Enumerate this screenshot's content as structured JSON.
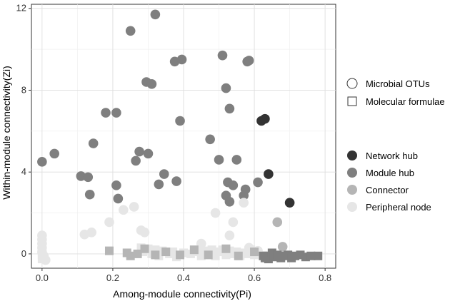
{
  "chart_data": {
    "type": "scatter",
    "title": "",
    "xlabel": "Among-module connectivity(Pi)",
    "ylabel": "Within-module connectivity(Zi)",
    "xlim": [
      -0.03,
      0.83
    ],
    "ylim": [
      -0.7,
      12.2
    ],
    "x_ticks": [
      0.0,
      0.2,
      0.4,
      0.6,
      0.8
    ],
    "x_tick_labels": [
      "0.0",
      "0.2",
      "0.4",
      "0.6",
      "0.8"
    ],
    "y_ticks": [
      0,
      4,
      8,
      12
    ],
    "y_tick_labels": [
      "0",
      "4",
      "8",
      "12"
    ],
    "grid": true,
    "legend_shape": {
      "items": [
        {
          "label": "Microbial OTUs",
          "shape": "circle"
        },
        {
          "label": "Molecular formulae",
          "shape": "square"
        }
      ]
    },
    "legend_role": {
      "items": [
        {
          "label": "Network hub",
          "color": "#333333"
        },
        {
          "label": "Module hub",
          "color": "#7f7f7f"
        },
        {
          "label": "Connector",
          "color": "#b5b5b5"
        },
        {
          "label": "Peripheral node",
          "color": "#e6e6e6"
        }
      ]
    },
    "series": [
      {
        "name": "Network hub",
        "shape": "circle",
        "color": "#333333",
        "points": [
          [
            0.62,
            6.5
          ],
          [
            0.63,
            6.6
          ],
          [
            0.64,
            3.9
          ],
          [
            0.7,
            2.5
          ]
        ]
      },
      {
        "name": "Module hub",
        "shape": "circle",
        "color": "#7f7f7f",
        "points": [
          [
            0.0,
            4.5
          ],
          [
            0.035,
            4.9
          ],
          [
            0.11,
            3.8
          ],
          [
            0.13,
            3.75
          ],
          [
            0.135,
            2.9
          ],
          [
            0.145,
            5.4
          ],
          [
            0.18,
            6.9
          ],
          [
            0.21,
            6.9
          ],
          [
            0.21,
            3.35
          ],
          [
            0.215,
            2.7
          ],
          [
            0.25,
            10.9
          ],
          [
            0.265,
            4.55
          ],
          [
            0.275,
            5.0
          ],
          [
            0.295,
            8.4
          ],
          [
            0.3,
            4.9
          ],
          [
            0.31,
            8.3
          ],
          [
            0.32,
            11.7
          ],
          [
            0.33,
            3.4
          ],
          [
            0.345,
            3.9
          ],
          [
            0.375,
            9.4
          ],
          [
            0.38,
            3.55
          ],
          [
            0.39,
            6.5
          ],
          [
            0.395,
            9.5
          ],
          [
            0.475,
            5.6
          ],
          [
            0.5,
            4.6
          ],
          [
            0.51,
            9.7
          ],
          [
            0.52,
            8.1
          ],
          [
            0.52,
            2.85
          ],
          [
            0.525,
            3.5
          ],
          [
            0.53,
            7.1
          ],
          [
            0.53,
            2.55
          ],
          [
            0.54,
            3.35
          ],
          [
            0.55,
            4.6
          ],
          [
            0.57,
            2.85
          ],
          [
            0.575,
            3.15
          ],
          [
            0.58,
            9.4
          ],
          [
            0.585,
            9.45
          ],
          [
            0.61,
            3.5
          ]
        ]
      },
      {
        "name": "Connector",
        "shape": "circle",
        "color": "#b5b5b5",
        "points": [
          [
            0.665,
            1.55
          ],
          [
            0.68,
            0.35
          ]
        ]
      },
      {
        "name": "Peripheral node",
        "shape": "circle",
        "color": "#e6e6e6",
        "points": [
          [
            0.0,
            0.9
          ],
          [
            0.0,
            0.7
          ],
          [
            0.0,
            0.5
          ],
          [
            0.0,
            0.3
          ],
          [
            0.0,
            0.1
          ],
          [
            0.005,
            -0.1
          ],
          [
            0.01,
            -0.3
          ],
          [
            0.12,
            0.95
          ],
          [
            0.14,
            1.05
          ],
          [
            0.19,
            1.55
          ],
          [
            0.23,
            2.15
          ],
          [
            0.26,
            2.3
          ],
          [
            0.28,
            1.15
          ],
          [
            0.29,
            1.05
          ],
          [
            0.45,
            0.5
          ],
          [
            0.49,
            2.0
          ],
          [
            0.53,
            0.9
          ],
          [
            0.54,
            1.55
          ],
          [
            0.57,
            2.5
          ],
          [
            0.585,
            0.3
          ],
          [
            0.59,
            0.1
          ],
          [
            0.61,
            0.15
          ]
        ]
      },
      {
        "name": "Peripheral node",
        "shape": "square",
        "color": "#e6e6e6",
        "points": [
          [
            0.0,
            0.15
          ],
          [
            0.0,
            -0.05
          ],
          [
            0.0,
            -0.25
          ],
          [
            0.28,
            0.3
          ],
          [
            0.285,
            0.1
          ],
          [
            0.3,
            0.25
          ],
          [
            0.31,
            0.0
          ],
          [
            0.32,
            0.2
          ],
          [
            0.33,
            -0.1
          ],
          [
            0.34,
            0.15
          ],
          [
            0.36,
            0.0
          ],
          [
            0.37,
            0.1
          ],
          [
            0.38,
            -0.15
          ],
          [
            0.4,
            0.05
          ],
          [
            0.42,
            0.0
          ],
          [
            0.44,
            0.1
          ],
          [
            0.45,
            -0.1
          ],
          [
            0.46,
            0.15
          ],
          [
            0.47,
            0.0
          ],
          [
            0.48,
            0.2
          ],
          [
            0.49,
            -0.1
          ],
          [
            0.5,
            0.1
          ],
          [
            0.51,
            0.2
          ],
          [
            0.52,
            -0.05
          ],
          [
            0.53,
            0.15
          ],
          [
            0.54,
            0.0
          ],
          [
            0.55,
            0.1
          ],
          [
            0.56,
            -0.1
          ],
          [
            0.57,
            0.05
          ],
          [
            0.58,
            0.0
          ],
          [
            0.59,
            0.2
          ],
          [
            0.6,
            -0.05
          ]
        ]
      },
      {
        "name": "Connector",
        "shape": "square",
        "color": "#b5b5b5",
        "points": [
          [
            0.19,
            0.15
          ],
          [
            0.24,
            0.05
          ],
          [
            0.25,
            -0.1
          ],
          [
            0.27,
            0.0
          ],
          [
            0.29,
            0.25
          ],
          [
            0.32,
            -0.05
          ],
          [
            0.35,
            0.1
          ],
          [
            0.39,
            -0.05
          ],
          [
            0.43,
            0.2
          ],
          [
            0.47,
            -0.05
          ],
          [
            0.52,
            0.25
          ],
          [
            0.555,
            -0.1
          ],
          [
            0.6,
            0.1
          ]
        ]
      },
      {
        "name": "Module hub",
        "shape": "square",
        "color": "#7f7f7f",
        "points": [
          [
            0.625,
            -0.1
          ],
          [
            0.63,
            -0.2
          ],
          [
            0.635,
            -0.1
          ],
          [
            0.64,
            -0.25
          ],
          [
            0.65,
            0.05
          ],
          [
            0.655,
            -0.15
          ],
          [
            0.665,
            -0.05
          ],
          [
            0.675,
            -0.2
          ],
          [
            0.685,
            -0.1
          ],
          [
            0.695,
            -0.05
          ],
          [
            0.705,
            -0.2
          ],
          [
            0.715,
            -0.1
          ],
          [
            0.73,
            -0.05
          ],
          [
            0.745,
            -0.15
          ],
          [
            0.76,
            -0.1
          ],
          [
            0.78,
            -0.1
          ]
        ]
      }
    ]
  }
}
